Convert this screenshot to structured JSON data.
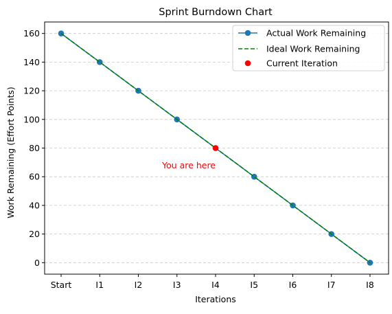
{
  "chart_data": {
    "type": "line",
    "title": "Sprint Burndown Chart",
    "xlabel": "Iterations",
    "ylabel": "Work Remaining (Effort Points)",
    "categories": [
      "Start",
      "I1",
      "I2",
      "I3",
      "I4",
      "I5",
      "I6",
      "I7",
      "I8"
    ],
    "ylim": [
      -8,
      168
    ],
    "yticks": [
      0,
      20,
      40,
      60,
      80,
      100,
      120,
      140,
      160
    ],
    "grid": {
      "axis": "y",
      "style": "dashed"
    },
    "legend_position": "top-right",
    "series": [
      {
        "name": "Actual Work Remaining",
        "kind": "line-marker",
        "color": "#1f77b4",
        "values": [
          160,
          140,
          120,
          100,
          80,
          60,
          40,
          20,
          0
        ]
      },
      {
        "name": "Ideal Work Remaining",
        "kind": "dashed-line",
        "color": "#008000",
        "values": [
          160,
          140,
          120,
          100,
          80,
          60,
          40,
          20,
          0
        ]
      },
      {
        "name": "Current Iteration",
        "kind": "point",
        "color": "#ff0000",
        "x": "I4",
        "y": 80
      }
    ],
    "annotations": [
      {
        "text": "You are here",
        "x": "I4",
        "y": 68,
        "color": "#ff0000",
        "anchor": "end"
      }
    ]
  }
}
